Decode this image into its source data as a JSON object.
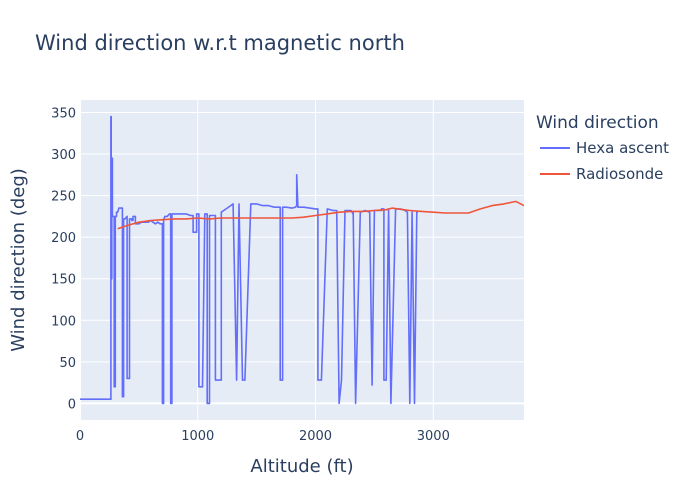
{
  "chart_data": {
    "type": "line",
    "title": "Wind direction w.r.t magnetic north",
    "xlabel": "Altitude (ft)",
    "ylabel": "Wind direction (deg)",
    "xlim": [
      0,
      3770
    ],
    "ylim": [
      -20,
      365
    ],
    "x_ticks": [
      0,
      1000,
      2000,
      3000
    ],
    "y_ticks": [
      0,
      50,
      100,
      150,
      200,
      250,
      300,
      350
    ],
    "grid": true,
    "legend_title": "Wind direction",
    "legend_position": "top-right",
    "background": "#e5ecf6",
    "series": [
      {
        "name": "Hexa ascent",
        "color": "#636efa",
        "x": [
          0,
          260,
          262,
          262,
          265,
          265,
          270,
          270,
          275,
          275,
          285,
          290,
          290,
          300,
          300,
          310,
          310,
          320,
          330,
          345,
          360,
          360,
          370,
          370,
          380,
          400,
          400,
          420,
          420,
          440,
          440,
          450,
          450,
          460,
          470,
          470,
          480,
          500,
          520,
          540,
          560,
          580,
          600,
          620,
          640,
          660,
          680,
          700,
          700,
          710,
          710,
          720,
          740,
          760,
          770,
          770,
          780,
          780,
          790,
          800,
          850,
          900,
          940,
          960,
          960,
          990,
          990,
          1010,
          1010,
          1040,
          1060,
          1080,
          1080,
          1100,
          1100,
          1150,
          1150,
          1200,
          1200,
          1220,
          1250,
          1280,
          1300,
          1300,
          1330,
          1330,
          1350,
          1350,
          1380,
          1400,
          1450,
          1500,
          1550,
          1600,
          1650,
          1700,
          1700,
          1720,
          1720,
          1750,
          1800,
          1830,
          1840,
          1840,
          1850,
          1900,
          1950,
          2000,
          2020,
          2020,
          2050,
          2100,
          2150,
          2180,
          2180,
          2200,
          2200,
          2220,
          2220,
          2250,
          2300,
          2320,
          2320,
          2340,
          2340,
          2380,
          2420,
          2460,
          2460,
          2480,
          2480,
          2500,
          2560,
          2560,
          2580,
          2580,
          2600,
          2620,
          2620,
          2640,
          2640,
          2680,
          2720,
          2760,
          2780,
          2780,
          2800,
          2800,
          2820,
          2820,
          2840,
          2840,
          2860,
          2870
        ],
        "y": [
          5,
          5,
          5,
          345,
          345,
          150,
          150,
          295,
          295,
          225,
          225,
          225,
          20,
          20,
          225,
          225,
          230,
          230,
          235,
          235,
          235,
          8,
          8,
          222,
          222,
          225,
          30,
          30,
          222,
          222,
          220,
          220,
          225,
          225,
          225,
          216,
          216,
          216,
          218,
          218,
          218,
          218,
          220,
          218,
          216,
          218,
          216,
          216,
          0,
          0,
          220,
          225,
          225,
          228,
          228,
          0,
          0,
          228,
          228,
          228,
          228,
          228,
          226,
          226,
          206,
          206,
          228,
          228,
          20,
          20,
          228,
          228,
          0,
          0,
          226,
          226,
          28,
          28,
          230,
          232,
          235,
          238,
          240,
          240,
          28,
          28,
          240,
          240,
          28,
          28,
          240,
          240,
          238,
          238,
          236,
          236,
          28,
          28,
          236,
          236,
          235,
          236,
          238,
          275,
          236,
          236,
          235,
          234,
          234,
          28,
          28,
          234,
          232,
          232,
          232,
          0,
          0,
          28,
          28,
          232,
          232,
          228,
          230,
          0,
          0,
          230,
          232,
          230,
          230,
          22,
          22,
          232,
          232,
          234,
          234,
          28,
          28,
          234,
          234,
          0,
          0,
          234,
          234,
          232,
          230,
          230,
          0,
          0,
          230,
          230,
          0,
          0,
          230,
          230
        ]
      },
      {
        "name": "Radiosonde",
        "color": "#ef553b",
        "x": [
          320,
          400,
          500,
          600,
          700,
          800,
          900,
          1000,
          1100,
          1200,
          1300,
          1400,
          1500,
          1600,
          1700,
          1800,
          1900,
          2000,
          2100,
          2200,
          2300,
          2400,
          2500,
          2600,
          2650,
          2700,
          2800,
          2900,
          3000,
          3100,
          3200,
          3300,
          3400,
          3500,
          3600,
          3700,
          3770
        ],
        "y": [
          210,
          214,
          218,
          220,
          221,
          222,
          222,
          223,
          222,
          223,
          223,
          223,
          223,
          223,
          223,
          223,
          224,
          226,
          228,
          230,
          231,
          231,
          232,
          233,
          235,
          234,
          232,
          231,
          230,
          229,
          229,
          229,
          234,
          238,
          240,
          243,
          238
        ]
      }
    ]
  }
}
